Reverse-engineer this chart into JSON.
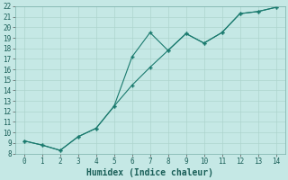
{
  "title": "",
  "xlabel": "Humidex (Indice chaleur)",
  "ylabel": "",
  "background_color": "#c5e8e5",
  "line_color": "#1a7a6e",
  "grid_color": "#aed4ce",
  "xlim": [
    -0.5,
    14.5
  ],
  "ylim": [
    8,
    22
  ],
  "xticks": [
    0,
    1,
    2,
    3,
    4,
    5,
    6,
    7,
    8,
    9,
    10,
    11,
    12,
    13,
    14
  ],
  "yticks": [
    8,
    9,
    10,
    11,
    12,
    13,
    14,
    15,
    16,
    17,
    18,
    19,
    20,
    21,
    22
  ],
  "series1_x": [
    0,
    1,
    2,
    3,
    4,
    5,
    6,
    7,
    8,
    9,
    10,
    11,
    12,
    13,
    14
  ],
  "series1_y": [
    9.2,
    8.8,
    8.3,
    9.6,
    10.4,
    12.5,
    17.2,
    19.5,
    17.8,
    19.4,
    18.5,
    19.5,
    21.3,
    21.5,
    21.9
  ],
  "series2_x": [
    0,
    1,
    2,
    3,
    4,
    5,
    6,
    7,
    8,
    9,
    10,
    11,
    12,
    13,
    14
  ],
  "series2_y": [
    9.2,
    8.8,
    8.3,
    9.6,
    10.4,
    12.5,
    14.5,
    16.2,
    17.8,
    19.4,
    18.5,
    19.5,
    21.3,
    21.5,
    21.9
  ],
  "font_family": "monospace",
  "tick_fontsize": 5.5,
  "xlabel_fontsize": 7.0
}
